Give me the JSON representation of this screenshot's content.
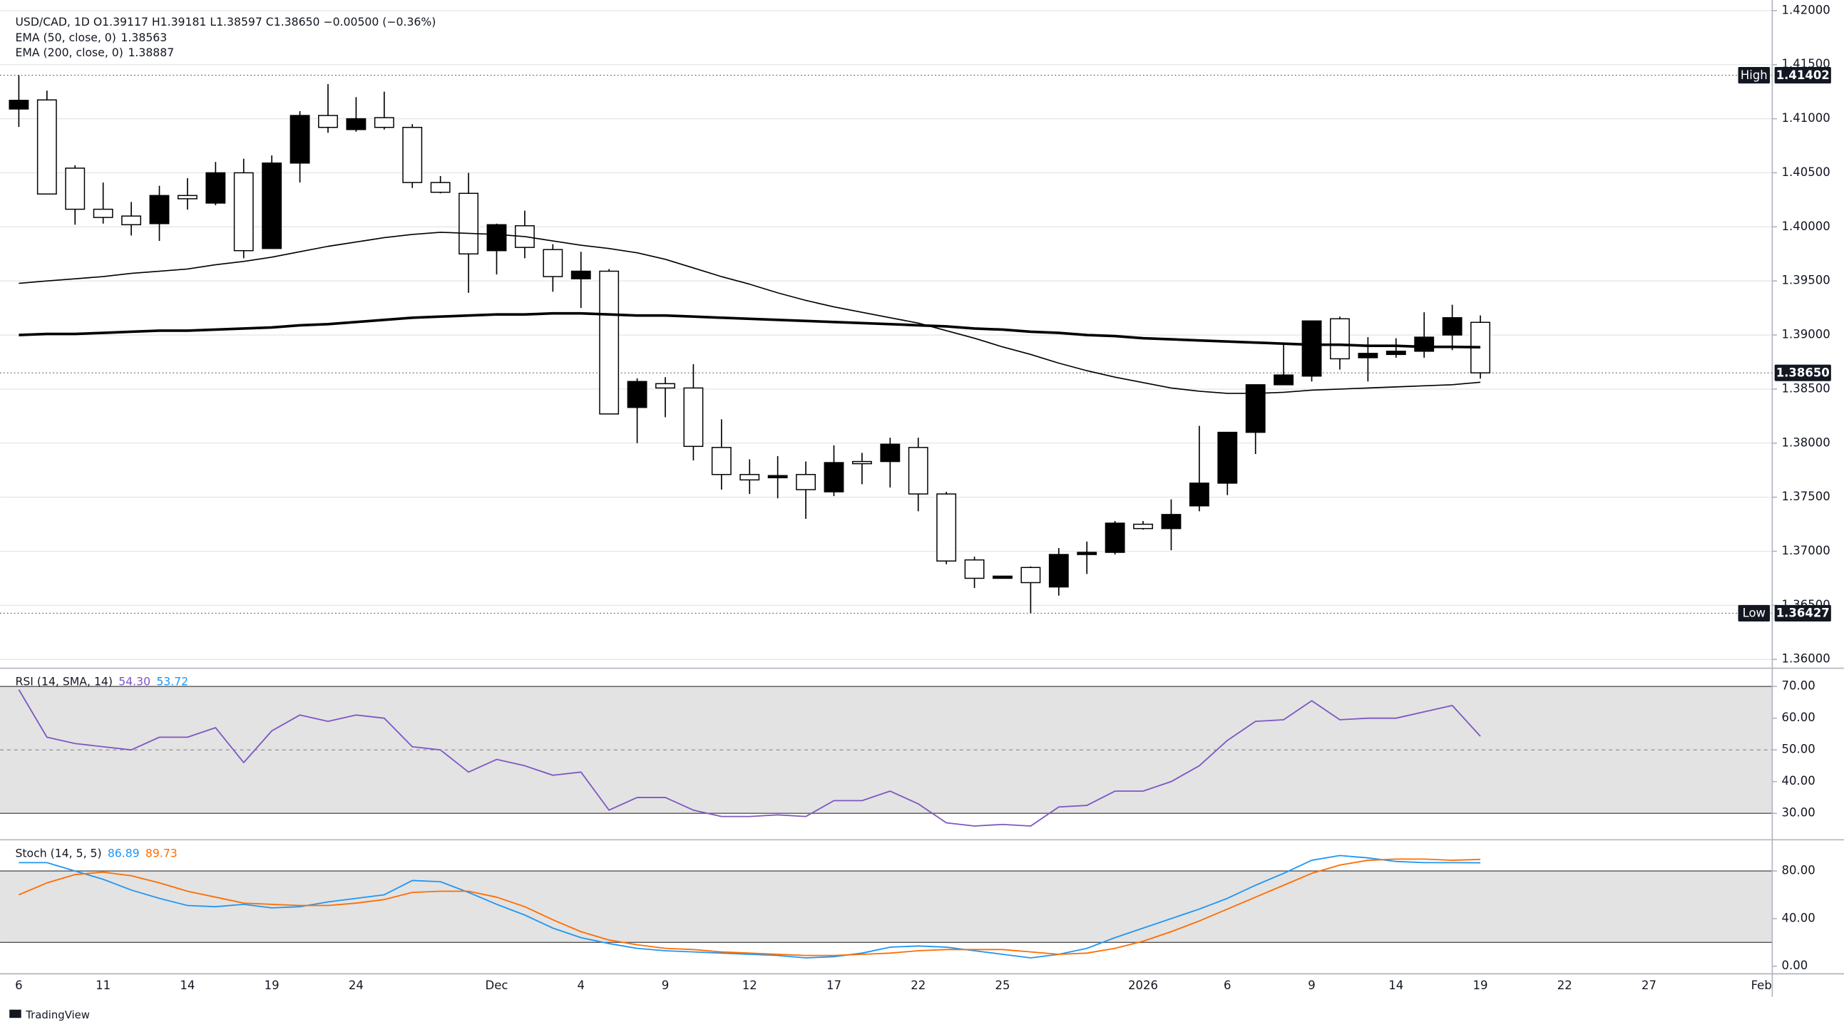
{
  "chart_data": [
    {
      "type": "candlestick",
      "header": "USD/CAD, 1D  O1.39117  H1.39181  L1.38597  C1.38650  −0.00500 (−0.36%)",
      "categories": [
        "6",
        null,
        null,
        "11",
        null,
        null,
        "14",
        null,
        null,
        "19",
        null,
        null,
        "24",
        null,
        null,
        null,
        null,
        "Dec",
        null,
        null,
        "4",
        null,
        null,
        "9",
        null,
        null,
        "12",
        null,
        null,
        "17",
        null,
        null,
        "22",
        null,
        null,
        "25",
        null,
        null,
        null,
        null,
        "2026",
        null,
        null,
        "6",
        null,
        null,
        "9",
        null,
        null,
        "14",
        null,
        null,
        "19",
        null,
        null,
        "22",
        null,
        null,
        "27",
        null,
        null,
        null,
        "Feb"
      ],
      "open": [
        1.4109,
        1.41174,
        1.40543,
        1.40163,
        1.401,
        1.4003,
        1.4029,
        1.4022,
        1.405,
        1.398,
        1.4059,
        1.4103,
        1.409,
        1.4101,
        1.4092,
        1.4041,
        1.4031,
        1.3978,
        1.4001,
        1.3979,
        1.3952,
        1.3959,
        1.3833,
        1.3855,
        1.3851,
        1.3796,
        1.3771,
        1.3768,
        1.3771,
        1.3755,
        1.3783,
        1.3783,
        1.3796,
        1.3753,
        1.3692,
        1.3675,
        1.3685,
        1.3667,
        1.3697,
        1.3699,
        1.3725,
        1.3721,
        1.3742,
        1.3763,
        1.381,
        1.3854,
        1.3862,
        1.3915,
        1.3879,
        1.3882,
        1.3885,
        1.39,
        1.39117,
        null,
        null,
        null,
        null,
        null,
        null,
        null,
        null,
        null,
        null
      ],
      "high": [
        1.41402,
        1.4126,
        1.4057,
        1.4041,
        1.4023,
        1.4038,
        1.4045,
        1.406,
        1.4063,
        1.4066,
        1.4107,
        1.4132,
        1.412,
        1.4125,
        1.4095,
        1.4047,
        1.405,
        1.4003,
        1.4015,
        1.3984,
        1.3977,
        1.3961,
        1.386,
        1.3861,
        1.3873,
        1.3822,
        1.3785,
        1.3788,
        1.3783,
        1.3798,
        1.3791,
        1.3805,
        1.3805,
        1.3755,
        1.3695,
        1.3677,
        1.3686,
        1.3703,
        1.3709,
        1.3728,
        1.3728,
        1.3748,
        1.3816,
        1.381,
        1.3854,
        1.3891,
        1.3913,
        1.3917,
        1.3898,
        1.3897,
        1.3921,
        1.3928,
        1.39181,
        null,
        null,
        null,
        null,
        null,
        null,
        null,
        null,
        null,
        null
      ],
      "low": [
        1.40924,
        1.403,
        1.4002,
        1.4003,
        1.3992,
        1.3987,
        1.4016,
        1.402,
        1.3971,
        1.398,
        1.4041,
        1.4087,
        1.4088,
        1.409,
        1.4036,
        1.4031,
        1.3939,
        1.3956,
        1.3971,
        1.394,
        1.3925,
        1.3827,
        1.38,
        1.3824,
        1.3784,
        1.3757,
        1.3753,
        1.3749,
        1.373,
        1.3751,
        1.3762,
        1.3759,
        1.3737,
        1.3688,
        1.3666,
        1.3675,
        1.36427,
        1.3659,
        1.3679,
        1.3697,
        1.372,
        1.3701,
        1.3737,
        1.3752,
        1.379,
        1.3854,
        1.3857,
        1.3868,
        1.3857,
        1.3879,
        1.3879,
        1.3886,
        1.38597,
        null,
        null,
        null,
        null,
        null,
        null,
        null,
        null,
        null,
        null
      ],
      "close": [
        1.4117,
        1.40304,
        1.40163,
        1.40087,
        1.4002,
        1.4029,
        1.4026,
        1.405,
        1.3978,
        1.4059,
        1.4103,
        1.4092,
        1.41,
        1.4092,
        1.4041,
        1.4032,
        1.3975,
        1.4002,
        1.3981,
        1.3954,
        1.3959,
        1.3827,
        1.3857,
        1.3851,
        1.3797,
        1.3771,
        1.3766,
        1.377,
        1.3757,
        1.3782,
        1.3781,
        1.3799,
        1.3753,
        1.3691,
        1.3675,
        1.3677,
        1.3671,
        1.3697,
        1.3699,
        1.3726,
        1.3721,
        1.3734,
        1.3763,
        1.381,
        1.3854,
        1.3863,
        1.3913,
        1.3878,
        1.3883,
        1.3885,
        1.3898,
        1.3916,
        1.3865,
        null,
        null,
        null,
        null,
        null,
        null,
        null,
        null,
        null,
        null
      ],
      "up_color": "#000000",
      "down_color": "#ffffff",
      "series": [
        {
          "name": "EMA (50, close, 0)",
          "last_label": "1.38563",
          "color": "#000000",
          "width": 1,
          "values": [
            1.39478,
            1.395,
            1.3952,
            1.3954,
            1.3957,
            1.3959,
            1.3961,
            1.3965,
            1.3968,
            1.3972,
            1.3977,
            1.3982,
            1.3986,
            1.399,
            1.3993,
            1.3995,
            1.3994,
            1.3993,
            1.3991,
            1.3987,
            1.3983,
            1.398,
            1.3976,
            1.397,
            1.3962,
            1.3954,
            1.3947,
            1.3939,
            1.3932,
            1.3926,
            1.3921,
            1.3916,
            1.3911,
            1.3904,
            1.3897,
            1.3889,
            1.3882,
            1.3874,
            1.3867,
            1.3861,
            1.3856,
            1.3851,
            1.3848,
            1.3846,
            1.3846,
            1.3847,
            1.3849,
            1.385,
            1.3851,
            1.3852,
            1.3853,
            1.3854,
            1.38563,
            null,
            null,
            null,
            null,
            null,
            null,
            null,
            null,
            null,
            null
          ]
        },
        {
          "name": "EMA (200, close, 0)",
          "last_label": "1.38887",
          "color": "#000000",
          "width": 2.2,
          "values": [
            1.39,
            1.3901,
            1.3901,
            1.3902,
            1.3903,
            1.3904,
            1.3904,
            1.3905,
            1.3906,
            1.3907,
            1.3909,
            1.391,
            1.3912,
            1.3914,
            1.3916,
            1.3917,
            1.3918,
            1.3919,
            1.3919,
            1.392,
            1.392,
            1.3919,
            1.3918,
            1.3918,
            1.3917,
            1.3916,
            1.3915,
            1.3914,
            1.3913,
            1.3912,
            1.3911,
            1.391,
            1.3909,
            1.3908,
            1.3906,
            1.3905,
            1.3903,
            1.3902,
            1.39,
            1.3899,
            1.3897,
            1.3896,
            1.3895,
            1.3894,
            1.3893,
            1.3892,
            1.3891,
            1.3891,
            1.389,
            1.389,
            1.3889,
            1.3889,
            1.38887,
            null,
            null,
            null,
            null,
            null,
            null,
            null,
            null,
            null,
            null
          ]
        }
      ],
      "ylim": [
        1.35924,
        1.42098
      ],
      "yticks": [
        {
          "value": 1.36,
          "label": "1.36000"
        },
        {
          "value": 1.365,
          "label": "1.36500"
        },
        {
          "value": 1.37,
          "label": "1.37000"
        },
        {
          "value": 1.375,
          "label": "1.37500"
        },
        {
          "value": 1.38,
          "label": "1.38000"
        },
        {
          "value": 1.385,
          "label": "1.38500"
        },
        {
          "value": 1.39,
          "label": "1.39000"
        },
        {
          "value": 1.395,
          "label": "1.39500"
        },
        {
          "value": 1.4,
          "label": "1.40000"
        },
        {
          "value": 1.405,
          "label": "1.40500"
        },
        {
          "value": 1.41,
          "label": "1.41000"
        },
        {
          "value": 1.415,
          "label": "1.41500"
        },
        {
          "value": 1.42,
          "label": "1.42000"
        }
      ],
      "grid": true,
      "markers": [
        {
          "name": "High",
          "value": 1.41402
        },
        {
          "name": "Low",
          "value": 1.36427
        }
      ],
      "last_price": {
        "value": 1.3865,
        "label": "1.38650"
      },
      "watermark": "TradingView"
    },
    {
      "type": "line",
      "header": "RSI (14, SMA, 14)",
      "header_values": [
        {
          "label": "54.30",
          "color": "#7e57c2"
        },
        {
          "label": "53.72",
          "color": "#2196f3"
        }
      ],
      "series": [
        {
          "name": "RSI",
          "color": "#7e57c2",
          "values": [
            69,
            54,
            52,
            51,
            50,
            54,
            54,
            57,
            46,
            56,
            61,
            59,
            61,
            60,
            51,
            50,
            43,
            47,
            45,
            42,
            43,
            31,
            35,
            35,
            31,
            29,
            29,
            29.5,
            29,
            34,
            34,
            37,
            33,
            27,
            26,
            26.5,
            26,
            32,
            32.5,
            37,
            37,
            40,
            45,
            53,
            59,
            59.5,
            65.5,
            59.5,
            60,
            60,
            62,
            64,
            54.3,
            null,
            null,
            null,
            null,
            null,
            null,
            null,
            null,
            null,
            null
          ]
        }
      ],
      "ylim": [
        22.2,
        75.2
      ],
      "yticks": [
        {
          "value": 30,
          "label": "30.00"
        },
        {
          "value": 40,
          "label": "40.00"
        },
        {
          "value": 50,
          "label": "50.00"
        },
        {
          "value": 60,
          "label": "60.00"
        },
        {
          "value": 70,
          "label": "70.00"
        }
      ],
      "bands": [
        30,
        70
      ],
      "midline": 50,
      "band_color": "#e3e3e3"
    },
    {
      "type": "line",
      "header": "Stoch (14, 5, 5)",
      "header_values": [
        {
          "label": "86.89",
          "color": "#2196f3"
        },
        {
          "label": "89.73",
          "color": "#ff6d00"
        }
      ],
      "series": [
        {
          "name": "%K",
          "color": "#2196f3",
          "values": [
            87,
            87,
            80,
            73,
            64,
            57,
            51,
            50,
            52,
            49,
            50,
            54,
            57,
            60,
            72,
            71,
            62,
            52,
            43,
            32,
            24,
            19,
            15,
            13,
            12,
            11,
            10,
            9,
            7,
            8,
            11,
            16,
            17,
            16,
            13,
            10,
            7,
            10,
            15,
            24,
            32,
            40,
            48,
            57,
            68,
            78,
            89,
            93,
            91,
            88,
            87,
            87,
            86.89,
            null,
            null,
            null,
            null,
            null,
            null,
            null,
            null,
            null,
            null
          ]
        },
        {
          "name": "%D",
          "color": "#ff6d00",
          "values": [
            60,
            70,
            77,
            79,
            76,
            70,
            63,
            58,
            53,
            52,
            51,
            51,
            53,
            56,
            62,
            63,
            63,
            58,
            50,
            39,
            29,
            22,
            18,
            15,
            14,
            12,
            11,
            10,
            9,
            9,
            10,
            11,
            13,
            14,
            14,
            14,
            12,
            10,
            11,
            15,
            21,
            29,
            38,
            48,
            58,
            68,
            78,
            85,
            89,
            90,
            90,
            89,
            89.73,
            null,
            null,
            null,
            null,
            null,
            null,
            null,
            null,
            null,
            null
          ]
        }
      ],
      "ylim": [
        -5.9,
        104.7
      ],
      "yticks": [
        {
          "value": 0,
          "label": "0.00"
        },
        {
          "value": 40,
          "label": "40.00"
        },
        {
          "value": 80,
          "label": "80.00"
        }
      ],
      "bands": [
        20,
        80
      ],
      "band_color": "#e3e3e3"
    }
  ]
}
